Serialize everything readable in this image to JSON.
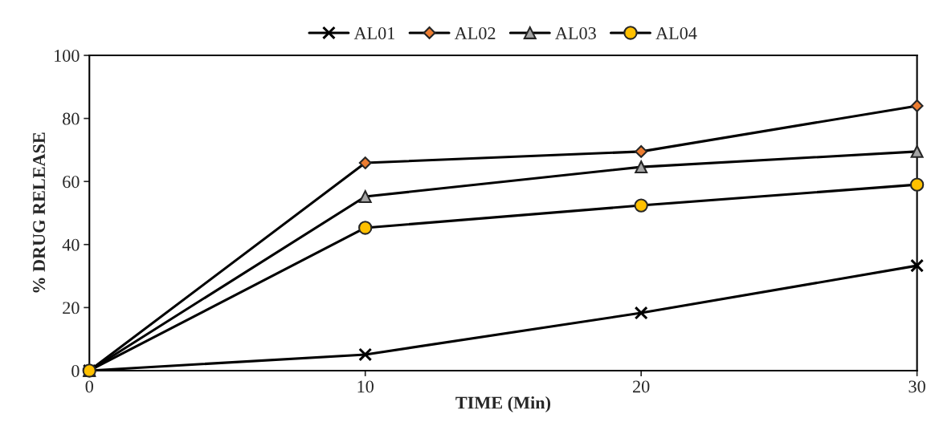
{
  "chart_data": {
    "type": "line",
    "xlabel": "TIME (Min)",
    "ylabel": "% DRUG RELEASE",
    "x": [
      0,
      10,
      20,
      30
    ],
    "series": [
      {
        "name": "AL01",
        "color": "#000000",
        "marker": "cross",
        "values": [
          0,
          5.1,
          18.3,
          33.3
        ]
      },
      {
        "name": "AL02",
        "color": "#ED7D31",
        "marker": "diamond",
        "values": [
          0,
          65.9,
          69.5,
          84.0
        ]
      },
      {
        "name": "AL03",
        "color": "#A5A5A5",
        "marker": "triangle",
        "values": [
          0,
          55.2,
          64.6,
          69.5
        ]
      },
      {
        "name": "AL04",
        "color": "#FFC000",
        "marker": "circle",
        "values": [
          0,
          45.3,
          52.4,
          59.0
        ]
      }
    ],
    "xlim": [
      0,
      30
    ],
    "xticks": [
      0,
      10,
      20,
      30
    ],
    "ylim": [
      0,
      100
    ],
    "yticks": [
      0,
      20,
      40,
      60,
      80,
      100
    ],
    "grid": false,
    "legend": "top",
    "line_style": "solid"
  }
}
